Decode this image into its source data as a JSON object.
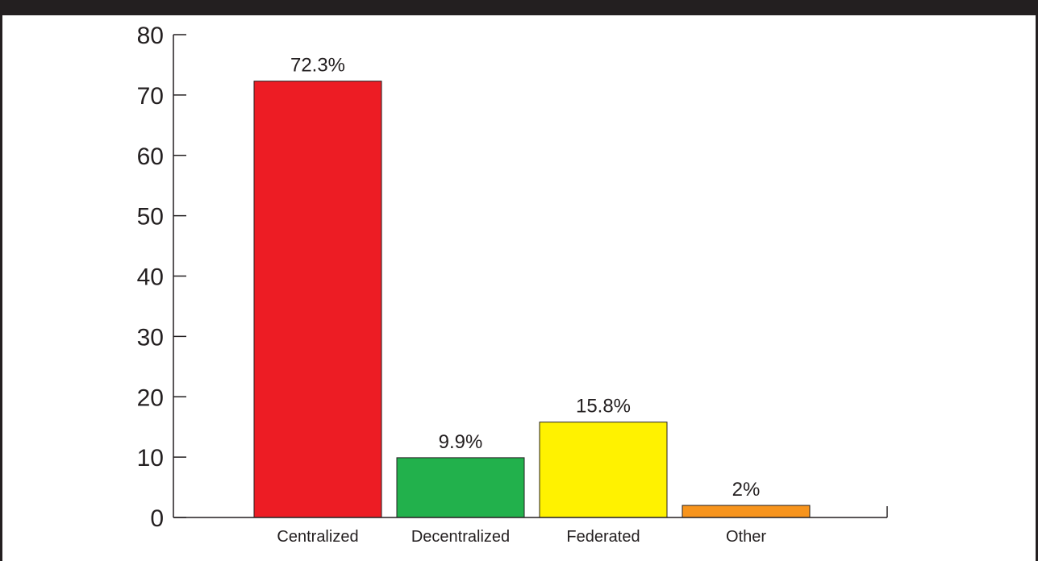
{
  "chart_data": {
    "type": "bar",
    "title": "",
    "xlabel": "",
    "ylabel": "",
    "categories": [
      "Centralized",
      "Decentralized",
      "Federated",
      "Other"
    ],
    "values": [
      72.3,
      9.9,
      15.8,
      2
    ],
    "data_labels": [
      "72.3%",
      "9.9%",
      "15.8%",
      "2%"
    ],
    "colors": [
      "#ed1c24",
      "#22b14c",
      "#fff200",
      "#f7941d"
    ],
    "ylim": [
      0,
      80
    ],
    "yticks": [
      0,
      10,
      20,
      30,
      40,
      50,
      60,
      70,
      80
    ],
    "grid": false,
    "legend": "none"
  }
}
